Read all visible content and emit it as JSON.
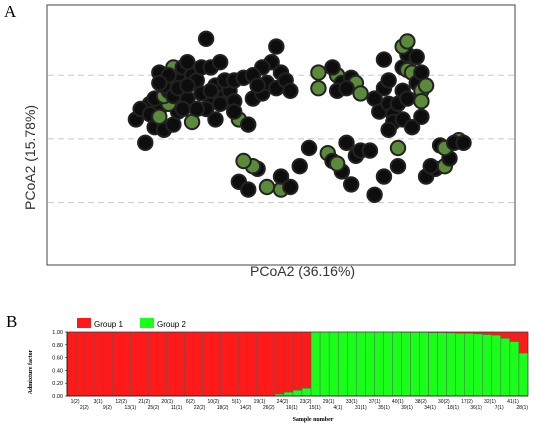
{
  "panels": {
    "a_letter": "A",
    "b_letter": "B"
  },
  "chart_data": [
    {
      "type": "scatter",
      "panel": "A",
      "xlabel": "PCoA2  (36.16%)",
      "ylabel": "PCoA2  (15.78%)",
      "grid": "dashed horizontal",
      "colors": {
        "black": "#0d0d0d",
        "green": "#5a8a3a",
        "edge": "#222222"
      },
      "xlim": [
        0,
        100
      ],
      "ylim": [
        0,
        100
      ],
      "points": [
        {
          "x": 34,
          "y": 13,
          "c": "black"
        },
        {
          "x": 41,
          "y": 68,
          "c": "black"
        },
        {
          "x": 43,
          "y": 71,
          "c": "black"
        },
        {
          "x": 45,
          "y": 63,
          "c": "black"
        },
        {
          "x": 47,
          "y": 70,
          "c": "green"
        },
        {
          "x": 50,
          "y": 71,
          "c": "green"
        },
        {
          "x": 50,
          "y": 66,
          "c": "black"
        },
        {
          "x": 52,
          "y": 70,
          "c": "black"
        },
        {
          "x": 44,
          "y": 62,
          "c": "green"
        },
        {
          "x": 42,
          "y": 60,
          "c": "green"
        },
        {
          "x": 54,
          "y": 62,
          "c": "black"
        },
        {
          "x": 56,
          "y": 55,
          "c": "black"
        },
        {
          "x": 60,
          "y": 57,
          "c": "green"
        },
        {
          "x": 61,
          "y": 60,
          "c": "black"
        },
        {
          "x": 63,
          "y": 64,
          "c": "black"
        },
        {
          "x": 65,
          "y": 69,
          "c": "black"
        },
        {
          "x": 66,
          "y": 58,
          "c": "black"
        },
        {
          "x": 67,
          "y": 56,
          "c": "black"
        },
        {
          "x": 70,
          "y": 73,
          "c": "black"
        },
        {
          "x": 72,
          "y": 66,
          "c": "black"
        },
        {
          "x": 75,
          "y": 62,
          "c": "black"
        },
        {
          "x": 62,
          "y": 61,
          "c": "green"
        },
        {
          "x": 64,
          "y": 53,
          "c": "black"
        },
        {
          "x": 69,
          "y": 56,
          "c": "black"
        },
        {
          "x": 81,
          "y": 66,
          "c": "black"
        },
        {
          "x": 83,
          "y": 63,
          "c": "black"
        },
        {
          "x": 84,
          "y": 54,
          "c": "black"
        },
        {
          "x": 85,
          "y": 62,
          "c": "green"
        },
        {
          "x": 86,
          "y": 59,
          "c": "black"
        },
        {
          "x": 85,
          "y": 55,
          "c": "green"
        },
        {
          "x": 88,
          "y": 52,
          "c": "green"
        },
        {
          "x": 87,
          "y": 53,
          "c": "black"
        },
        {
          "x": 89,
          "y": 53,
          "c": "black"
        },
        {
          "x": 82,
          "y": 62,
          "c": "black"
        },
        {
          "x": 21,
          "y": 53,
          "c": "black"
        },
        {
          "x": 23,
          "y": 47,
          "c": "black"
        },
        {
          "x": 25,
          "y": 48,
          "c": "black"
        },
        {
          "x": 27,
          "y": 46,
          "c": "black"
        },
        {
          "x": 28,
          "y": 41,
          "c": "black"
        },
        {
          "x": 22,
          "y": 38,
          "c": "black"
        },
        {
          "x": 24,
          "y": 40,
          "c": "black"
        },
        {
          "x": 26,
          "y": 38,
          "c": "green"
        },
        {
          "x": 23,
          "y": 36,
          "c": "black"
        },
        {
          "x": 25,
          "y": 35,
          "c": "green"
        },
        {
          "x": 26,
          "y": 33,
          "c": "black"
        },
        {
          "x": 27,
          "y": 30,
          "c": "black"
        },
        {
          "x": 29,
          "y": 34,
          "c": "black"
        },
        {
          "x": 30,
          "y": 36,
          "c": "black"
        },
        {
          "x": 28,
          "y": 28,
          "c": "black"
        },
        {
          "x": 24,
          "y": 26,
          "c": "black"
        },
        {
          "x": 27,
          "y": 24,
          "c": "green"
        },
        {
          "x": 29,
          "y": 24,
          "c": "black"
        },
        {
          "x": 31,
          "y": 27,
          "c": "black"
        },
        {
          "x": 32,
          "y": 29,
          "c": "black"
        },
        {
          "x": 30,
          "y": 22,
          "c": "black"
        },
        {
          "x": 33,
          "y": 24,
          "c": "black"
        },
        {
          "x": 35,
          "y": 24,
          "c": "black"
        },
        {
          "x": 37,
          "y": 22,
          "c": "black"
        },
        {
          "x": 36,
          "y": 31,
          "c": "black"
        },
        {
          "x": 38,
          "y": 35,
          "c": "black"
        },
        {
          "x": 39,
          "y": 33,
          "c": "black"
        },
        {
          "x": 40,
          "y": 37,
          "c": "black"
        },
        {
          "x": 35,
          "y": 36,
          "c": "black"
        },
        {
          "x": 33,
          "y": 34,
          "c": "black"
        },
        {
          "x": 34,
          "y": 40,
          "c": "black"
        },
        {
          "x": 38,
          "y": 29,
          "c": "black"
        },
        {
          "x": 40,
          "y": 29,
          "c": "black"
        },
        {
          "x": 36,
          "y": 44,
          "c": "black"
        },
        {
          "x": 41,
          "y": 44,
          "c": "green"
        },
        {
          "x": 43,
          "y": 46,
          "c": "black"
        },
        {
          "x": 44,
          "y": 36,
          "c": "black"
        },
        {
          "x": 46,
          "y": 34,
          "c": "black"
        },
        {
          "x": 47,
          "y": 30,
          "c": "black"
        },
        {
          "x": 49,
          "y": 32,
          "c": "black"
        },
        {
          "x": 50,
          "y": 26,
          "c": "black"
        },
        {
          "x": 51,
          "y": 29,
          "c": "black"
        },
        {
          "x": 52,
          "y": 33,
          "c": "black"
        },
        {
          "x": 48,
          "y": 22,
          "c": "black"
        },
        {
          "x": 46,
          "y": 24,
          "c": "black"
        },
        {
          "x": 49,
          "y": 16,
          "c": "black"
        },
        {
          "x": 58,
          "y": 26,
          "c": "green"
        },
        {
          "x": 62,
          "y": 27,
          "c": "green"
        },
        {
          "x": 61,
          "y": 24,
          "c": "black"
        },
        {
          "x": 63,
          "y": 30,
          "c": "black"
        },
        {
          "x": 65,
          "y": 28,
          "c": "black"
        },
        {
          "x": 66,
          "y": 30,
          "c": "green"
        },
        {
          "x": 58,
          "y": 32,
          "c": "green"
        },
        {
          "x": 62,
          "y": 33,
          "c": "black"
        },
        {
          "x": 64,
          "y": 32,
          "c": "black"
        },
        {
          "x": 67,
          "y": 34,
          "c": "green"
        },
        {
          "x": 70,
          "y": 36,
          "c": "black"
        },
        {
          "x": 71,
          "y": 41,
          "c": "black"
        },
        {
          "x": 73,
          "y": 38,
          "c": "black"
        },
        {
          "x": 74,
          "y": 42,
          "c": "black"
        },
        {
          "x": 75,
          "y": 38,
          "c": "black"
        },
        {
          "x": 76,
          "y": 33,
          "c": "black"
        },
        {
          "x": 77,
          "y": 36,
          "c": "black"
        },
        {
          "x": 72,
          "y": 32,
          "c": "black"
        },
        {
          "x": 73,
          "y": 29,
          "c": "black"
        },
        {
          "x": 72,
          "y": 21,
          "c": "black"
        },
        {
          "x": 76,
          "y": 24,
          "c": "black"
        },
        {
          "x": 77,
          "y": 19,
          "c": "black"
        },
        {
          "x": 76,
          "y": 16,
          "c": "green"
        },
        {
          "x": 77,
          "y": 14,
          "c": "green"
        },
        {
          "x": 77,
          "y": 25,
          "c": "green"
        },
        {
          "x": 78,
          "y": 26,
          "c": "green"
        },
        {
          "x": 79,
          "y": 30,
          "c": "black"
        },
        {
          "x": 80,
          "y": 33,
          "c": "green"
        },
        {
          "x": 80,
          "y": 26,
          "c": "black"
        },
        {
          "x": 79,
          "y": 20,
          "c": "black"
        },
        {
          "x": 81,
          "y": 31,
          "c": "green"
        },
        {
          "x": 80,
          "y": 37,
          "c": "green"
        },
        {
          "x": 74,
          "y": 45,
          "c": "black"
        },
        {
          "x": 73,
          "y": 48,
          "c": "black"
        },
        {
          "x": 76,
          "y": 44,
          "c": "black"
        },
        {
          "x": 78,
          "y": 47,
          "c": "black"
        },
        {
          "x": 80,
          "y": 43,
          "c": "black"
        },
        {
          "x": 75,
          "y": 55,
          "c": "green"
        },
        {
          "x": 19,
          "y": 44,
          "c": "black"
        },
        {
          "x": 20,
          "y": 40,
          "c": "black"
        },
        {
          "x": 22,
          "y": 42,
          "c": "black"
        },
        {
          "x": 24,
          "y": 43,
          "c": "green"
        },
        {
          "x": 25,
          "y": 31,
          "c": "black"
        },
        {
          "x": 27,
          "y": 35,
          "c": "black"
        },
        {
          "x": 29,
          "y": 40,
          "c": "black"
        },
        {
          "x": 31,
          "y": 45,
          "c": "green"
        },
        {
          "x": 32,
          "y": 40,
          "c": "black"
        },
        {
          "x": 42,
          "y": 28,
          "c": "black"
        },
        {
          "x": 44,
          "y": 27,
          "c": "black"
        },
        {
          "x": 45,
          "y": 31,
          "c": "black"
        },
        {
          "x": 26,
          "y": 27,
          "c": "black"
        },
        {
          "x": 28,
          "y": 32,
          "c": "black"
        },
        {
          "x": 30,
          "y": 31,
          "c": "black"
        },
        {
          "x": 24,
          "y": 30,
          "c": "black"
        },
        {
          "x": 40,
          "y": 41,
          "c": "black"
        },
        {
          "x": 37,
          "y": 38,
          "c": "black"
        },
        {
          "x": 35,
          "y": 33,
          "c": "black"
        }
      ]
    },
    {
      "type": "bar",
      "panel": "B",
      "stacked": true,
      "ylabel": "Admixture factor",
      "xlabel": "Sample number",
      "ylim": [
        0,
        1.0
      ],
      "yticks": [
        "0.00",
        "0.20",
        "0.40",
        "0.60",
        "0.80",
        "1.00"
      ],
      "legend": {
        "placement": "top-left"
      },
      "series": [
        {
          "name": "Group 1",
          "color": "#ff1a1a"
        },
        {
          "name": "Group 2",
          "color": "#1aff1a"
        }
      ],
      "group2_fraction": [
        0,
        0,
        0,
        0,
        0,
        0,
        0,
        0,
        0,
        0,
        0,
        0,
        0,
        0,
        0,
        0,
        0,
        0,
        0,
        0,
        0,
        0,
        0.01,
        0.03,
        0.06,
        0.09,
        0.12,
        1,
        1,
        1,
        1,
        1,
        1,
        1,
        1,
        1,
        1,
        0.995,
        0.995,
        0.995,
        0.99,
        0.99,
        0.985,
        0.98,
        0.98,
        0.97,
        0.96,
        0.95,
        0.9,
        0.85,
        0.67
      ],
      "tick_labels_top": [
        "1(2)",
        "3(1)",
        "12(2)",
        "21(2)",
        "20(1)",
        "6(2)",
        "10(2)",
        "5(1)",
        "19(1)",
        "24(2)",
        "23(2)",
        "29(1)",
        "33(1)",
        "37(1)",
        "40(1)",
        "38(2)",
        "30(2)",
        "17(2)",
        "32(1)",
        "41(1)"
      ],
      "tick_labels_bottom": [
        "2(2)",
        "9(2)",
        "13(1)",
        "25(2)",
        "11(1)",
        "22(2)",
        "18(2)",
        "14(2)",
        "26(2)",
        "16(1)",
        "15(1)",
        "4(1)",
        "31(1)",
        "35(1)",
        "39(1)",
        "34(1)",
        "18(1)",
        "36(1)",
        "7(1)",
        "28(1)"
      ]
    }
  ]
}
